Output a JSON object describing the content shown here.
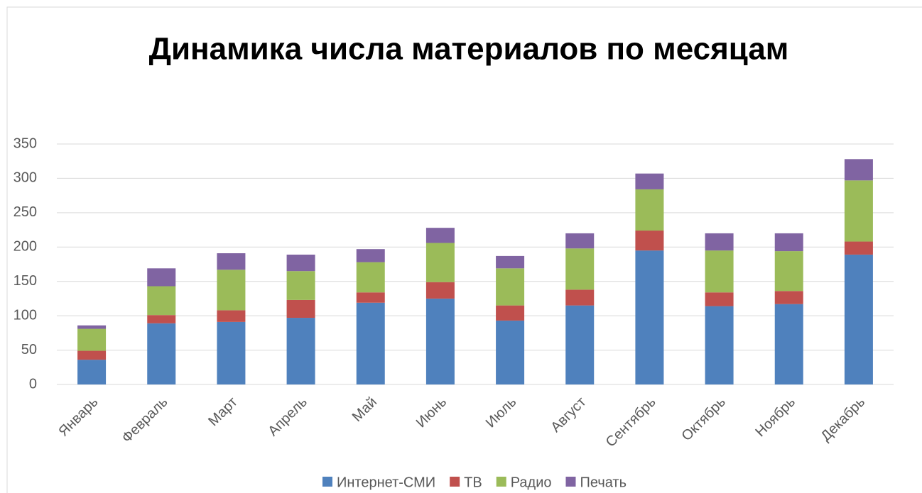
{
  "chart_data": {
    "type": "stacked_bar",
    "title": "Динамика числа материалов по месяцам",
    "categories": [
      "Январь",
      "Февраль",
      "Март",
      "Апрель",
      "Май",
      "Июнь",
      "Июль",
      "Август",
      "Сентябрь",
      "Октябрь",
      "Ноябрь",
      "Декабрь"
    ],
    "series": [
      {
        "name": "Интернет-СМИ",
        "color": "#4f81bd",
        "values": [
          36,
          89,
          91,
          97,
          119,
          125,
          93,
          115,
          195,
          114,
          117,
          189
        ]
      },
      {
        "name": "ТВ",
        "color": "#c0504d",
        "values": [
          13,
          12,
          17,
          26,
          15,
          24,
          22,
          23,
          29,
          20,
          19,
          19
        ]
      },
      {
        "name": "Радио",
        "color": "#9bbb59",
        "values": [
          32,
          42,
          59,
          42,
          44,
          57,
          54,
          60,
          60,
          61,
          58,
          89
        ]
      },
      {
        "name": "Печать",
        "color": "#8064a2",
        "values": [
          5,
          26,
          24,
          24,
          19,
          22,
          18,
          22,
          23,
          25,
          26,
          31
        ]
      }
    ],
    "ylim": [
      0,
      350
    ],
    "yticks": [
      0,
      50,
      100,
      150,
      200,
      250,
      300,
      350
    ],
    "grid": true,
    "legend": "bottom"
  }
}
